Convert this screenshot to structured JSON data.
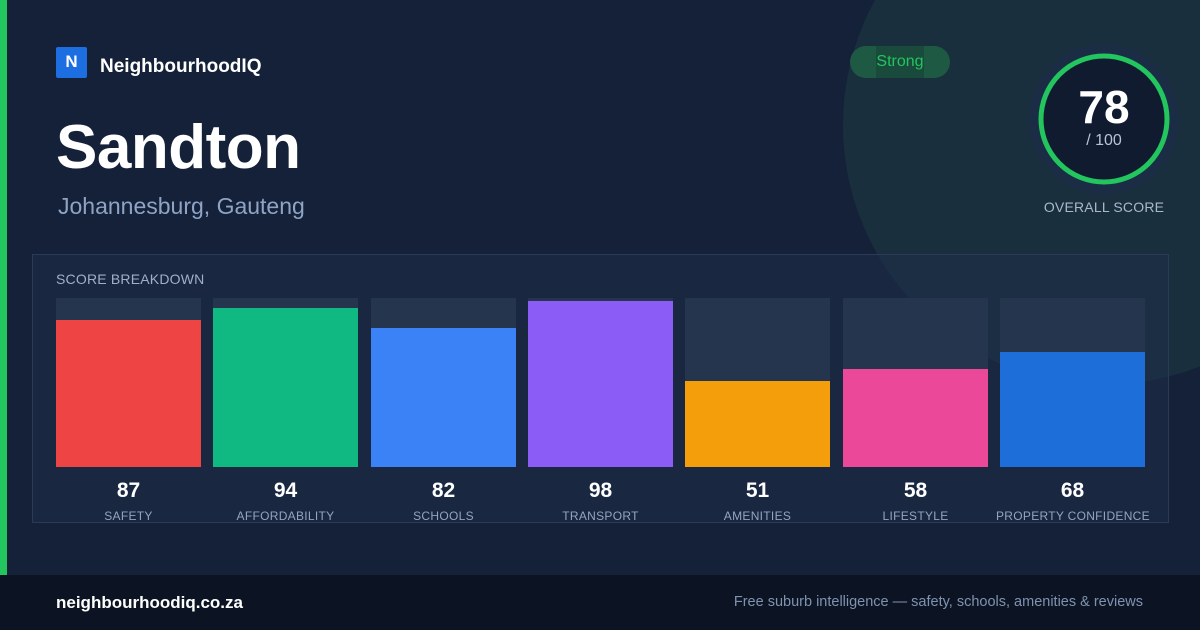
{
  "brand": {
    "logo_letter": "N",
    "name": "NeighbourhoodIQ"
  },
  "suburb": {
    "name": "Sandton",
    "location": "Johannesburg, Gauteng"
  },
  "rating_badge": {
    "label": "Strong",
    "color": "#22c55e"
  },
  "overall": {
    "score": "78",
    "max": "/ 100",
    "fraction": 0.78,
    "label": "OVERALL SCORE",
    "ring_color": "#22c55e"
  },
  "breakdown": {
    "title": "SCORE BREAKDOWN",
    "items": [
      {
        "label": "SAFETY",
        "value": "87",
        "score": 87,
        "color": "#ef4444"
      },
      {
        "label": "AFFORDABILITY",
        "value": "94",
        "score": 94,
        "color": "#10b981"
      },
      {
        "label": "SCHOOLS",
        "value": "82",
        "score": 82,
        "color": "#3b82f6"
      },
      {
        "label": "TRANSPORT",
        "value": "98",
        "score": 98,
        "color": "#8b5cf6"
      },
      {
        "label": "AMENITIES",
        "value": "51",
        "score": 51,
        "color": "#f59e0b"
      },
      {
        "label": "LIFESTYLE",
        "value": "58",
        "score": 58,
        "color": "#ec4899"
      },
      {
        "label": "PROPERTY CONFIDENCE",
        "value": "68",
        "score": 68,
        "color": "#1d6ed8"
      }
    ]
  },
  "footer": {
    "url": "neighbourhoodiq.co.za",
    "tagline": "Free suburb intelligence — safety, schools, amenities & reviews"
  }
}
